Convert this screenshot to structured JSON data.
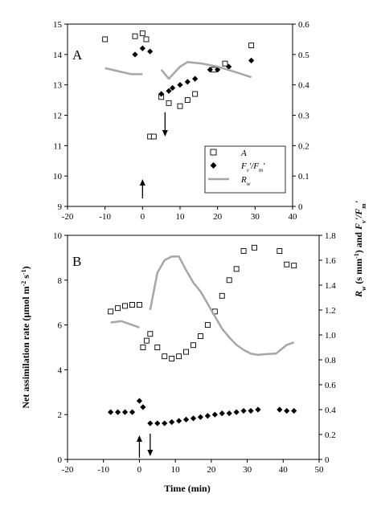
{
  "colors": {
    "marker": "#000000",
    "rw_line": "#a6a6a6",
    "background": "#ffffff"
  },
  "chart_data": [
    {
      "panel": "A",
      "type": "scatter",
      "xlim": [
        -20,
        40
      ],
      "xticks": [
        -20,
        -10,
        0,
        10,
        20,
        30,
        40
      ],
      "ylim_left": [
        9,
        15
      ],
      "yticks_left": [
        9,
        10,
        11,
        12,
        13,
        14,
        15
      ],
      "ylim_right": [
        0,
        0.6
      ],
      "yticks_right": [
        0,
        0.1,
        0.2,
        0.3,
        0.4,
        0.5,
        0.6
      ],
      "series": [
        {
          "name": "A",
          "axis": "left",
          "style": "open-square",
          "x": [
            -10,
            -2,
            0,
            1,
            2,
            3,
            5,
            7,
            10,
            12,
            14,
            19,
            22,
            29
          ],
          "y": [
            14.5,
            14.6,
            14.7,
            14.5,
            11.3,
            11.3,
            12.6,
            12.4,
            12.3,
            12.5,
            12.7,
            13.5,
            13.7,
            14.3
          ]
        },
        {
          "name": "Fv'/Fm'",
          "axis": "right",
          "style": "filled-diamond",
          "x": [
            -2,
            0,
            2,
            5,
            7,
            8,
            10,
            12,
            14,
            18,
            20,
            23,
            29
          ],
          "y": [
            0.5,
            0.52,
            0.51,
            0.37,
            0.38,
            0.39,
            0.4,
            0.41,
            0.42,
            0.45,
            0.45,
            0.46,
            0.48
          ]
        },
        {
          "name": "Rw",
          "axis": "right",
          "style": "gray-line",
          "segments": [
            {
              "x": [
                -10,
                -3,
                0
              ],
              "y": [
                0.455,
                0.435,
                0.435
              ]
            },
            {
              "x": [
                5,
                7,
                10,
                12,
                16,
                20,
                24,
                29
              ],
              "y": [
                0.45,
                0.42,
                0.46,
                0.475,
                0.47,
                0.46,
                0.445,
                0.425
              ]
            }
          ]
        }
      ],
      "arrows": [
        {
          "x": 0,
          "direction": "up"
        },
        {
          "x": 6,
          "direction": "down"
        }
      ],
      "legend": {
        "placement": "center-right",
        "entries": [
          "A",
          "Fv'/Fm'",
          "Rw"
        ]
      }
    },
    {
      "panel": "B",
      "type": "scatter",
      "xlim": [
        -20,
        50
      ],
      "xticks": [
        -20,
        -10,
        0,
        10,
        20,
        30,
        40,
        50
      ],
      "ylim_left": [
        0,
        10
      ],
      "yticks_left": [
        0,
        2,
        4,
        6,
        8,
        10
      ],
      "ylim_right": [
        0,
        1.8
      ],
      "yticks_right": [
        0,
        0.2,
        0.4,
        0.6,
        0.8,
        1.0,
        1.2,
        1.4,
        1.6,
        1.8
      ],
      "series": [
        {
          "name": "A",
          "axis": "left",
          "style": "open-square",
          "x": [
            -8,
            -6,
            -4,
            -2,
            0,
            1,
            2,
            3,
            5,
            7,
            9,
            11,
            13,
            15,
            17,
            19,
            21,
            23,
            25,
            27,
            29,
            32,
            39,
            41,
            43
          ],
          "y": [
            6.6,
            6.75,
            6.85,
            6.9,
            6.9,
            5.0,
            5.3,
            5.6,
            5.0,
            4.6,
            4.5,
            4.6,
            4.8,
            5.1,
            5.5,
            6.0,
            6.6,
            7.3,
            8.0,
            8.5,
            9.3,
            9.45,
            9.3,
            8.7,
            8.65
          ]
        },
        {
          "name": "Fv'/Fm'",
          "axis": "right",
          "style": "filled-diamond",
          "x": [
            -8,
            -6,
            -4,
            -2,
            0,
            1,
            3,
            5,
            7,
            9,
            11,
            13,
            15,
            17,
            19,
            21,
            23,
            25,
            27,
            29,
            31,
            33,
            39,
            41,
            43
          ],
          "y": [
            0.38,
            0.38,
            0.38,
            0.38,
            0.47,
            0.42,
            0.29,
            0.29,
            0.29,
            0.3,
            0.31,
            0.32,
            0.33,
            0.34,
            0.35,
            0.36,
            0.37,
            0.37,
            0.38,
            0.39,
            0.39,
            0.4,
            0.4,
            0.39,
            0.39
          ]
        },
        {
          "name": "Rw",
          "axis": "right",
          "style": "gray-line",
          "segments": [
            {
              "x": [
                -8,
                -5,
                -2,
                0
              ],
              "y": [
                1.1,
                1.11,
                1.08,
                1.06
              ]
            },
            {
              "x": [
                3,
                5,
                7,
                9,
                11,
                13,
                15,
                17,
                19,
                21,
                23,
                25,
                27,
                29,
                31,
                33,
                35,
                38,
                41,
                43
              ],
              "y": [
                1.2,
                1.5,
                1.6,
                1.63,
                1.63,
                1.52,
                1.42,
                1.35,
                1.25,
                1.15,
                1.05,
                0.98,
                0.92,
                0.88,
                0.85,
                0.84,
                0.845,
                0.85,
                0.92,
                0.94
              ]
            }
          ]
        }
      ],
      "arrows": [
        {
          "x": 0,
          "direction": "up"
        },
        {
          "x": 3,
          "direction": "down"
        }
      ]
    }
  ],
  "labels": {
    "panel_a": "A",
    "panel_b": "B",
    "xlabel": "Time (min)",
    "ylabel_left": "Net assimilation rate (µmol m⁻² s⁻¹)",
    "ylabel_right": "Rw (s mm⁻¹) and Fv'/Fm'"
  }
}
